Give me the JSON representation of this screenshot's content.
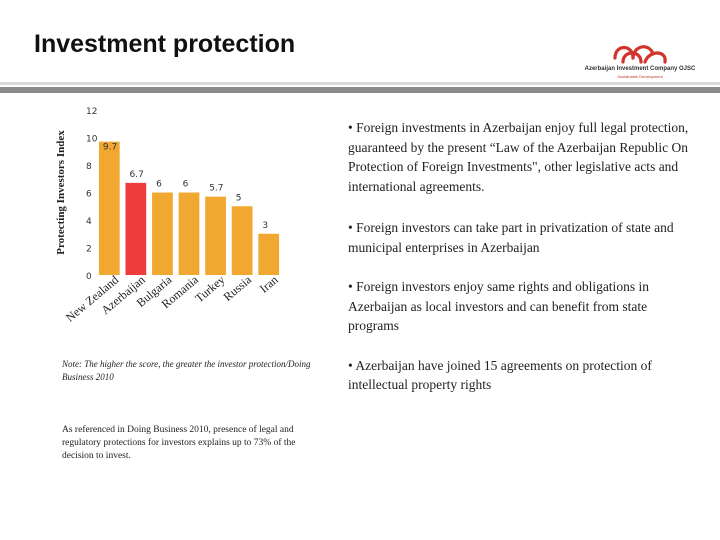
{
  "header": {
    "title": "Investment protection",
    "logo_text": "Azerbaijan Investment Company OJSC",
    "logo_tagline": "Sustainable Development"
  },
  "chart_data": {
    "type": "bar",
    "ylabel": "Protecting Investors Index",
    "xlabel": "",
    "ylim": [
      0,
      12
    ],
    "yticks": [
      "0",
      "2",
      "4",
      "6",
      "8",
      "10",
      "12"
    ],
    "grid": false,
    "categories": [
      "New Zealand",
      "Azerbaijan",
      "Bulgaria",
      "Romania",
      "Turkey",
      "Russia",
      "Iran"
    ],
    "values": [
      9.7,
      6.7,
      6,
      6,
      5.7,
      5,
      3
    ],
    "value_labels": [
      "9.7",
      "6.7",
      "6",
      "6",
      "5.7",
      "5",
      "3"
    ],
    "highlight_index": 1,
    "colors": {
      "bar": "#F0A830",
      "highlight": "#EE3B3B"
    }
  },
  "note": "Note: The higher the score, the greater the investor protection/Doing Business 2010",
  "reference": "As referenced in Doing Business 2010, presence of legal and regulatory protections for investors explains up to 73% of the decision to invest.",
  "bullets": [
    "• Foreign investments in Azerbaijan enjoy full legal protection, guaranteed by the present “Law of the Azerbaijan Republic On Protection of Foreign Investments\", other legislative acts and international agreements.",
    "• Foreign investors can take part in privatization of state and municipal enterprises in Azerbaijan",
    "• Foreign investors enjoy same rights and obligations in Azerbaijan as local investors and can benefit from state programs",
    "•  Azerbaijan have joined 15 agreements on protection of intellectual property rights"
  ]
}
